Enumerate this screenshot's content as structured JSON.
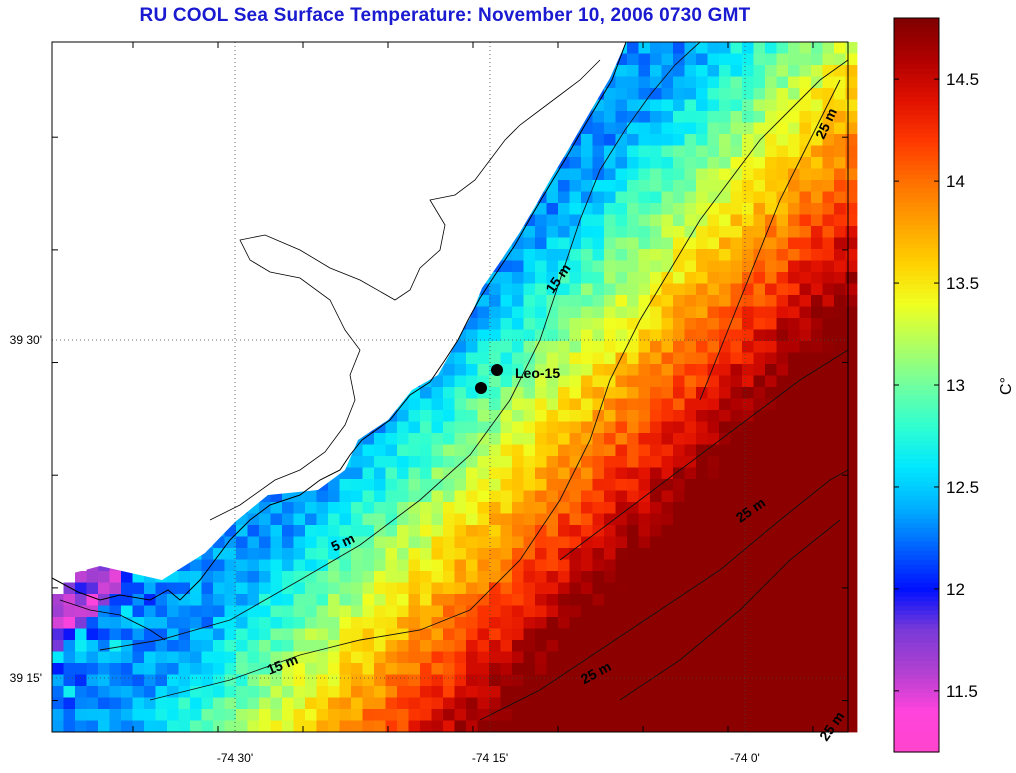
{
  "title": "RU COOL  Sea Surface Temperature:  November 10, 2006 0730 GMT",
  "map": {
    "x_ticks": [
      {
        "label": "-74 30'",
        "lon": -74.5
      },
      {
        "label": "-74 15'",
        "lon": -74.25
      },
      {
        "label": "-74 0'",
        "lon": -74.0
      }
    ],
    "y_ticks": [
      {
        "label": "39 30'",
        "lat": 39.5
      },
      {
        "label": "39 15'",
        "lat": 39.25
      }
    ],
    "station": {
      "label": "Leo-15"
    },
    "contour_labels": [
      "15 m",
      "5 m",
      "15 m",
      "25 m",
      "25 m",
      "25 m",
      "25 m"
    ]
  },
  "colorbar": {
    "unit": "C°",
    "ticks": [
      "14.5",
      "14",
      "13.5",
      "13",
      "12.5",
      "12",
      "11.5"
    ],
    "min": 11.2,
    "max": 14.8,
    "tick_values": [
      14.5,
      14.0,
      13.5,
      13.0,
      12.5,
      12.0,
      11.5
    ],
    "colors": [
      "#ff44cc",
      "#ff44dd",
      "#b040d0",
      "#7a3ad8",
      "#0010ff",
      "#0060ff",
      "#00b0ff",
      "#00e8ff",
      "#30ffd0",
      "#70ffa0",
      "#b0ff60",
      "#f0ff20",
      "#ffd000",
      "#ffa000",
      "#ff7000",
      "#ff3800",
      "#e01000",
      "#b00000",
      "#800000"
    ]
  }
}
